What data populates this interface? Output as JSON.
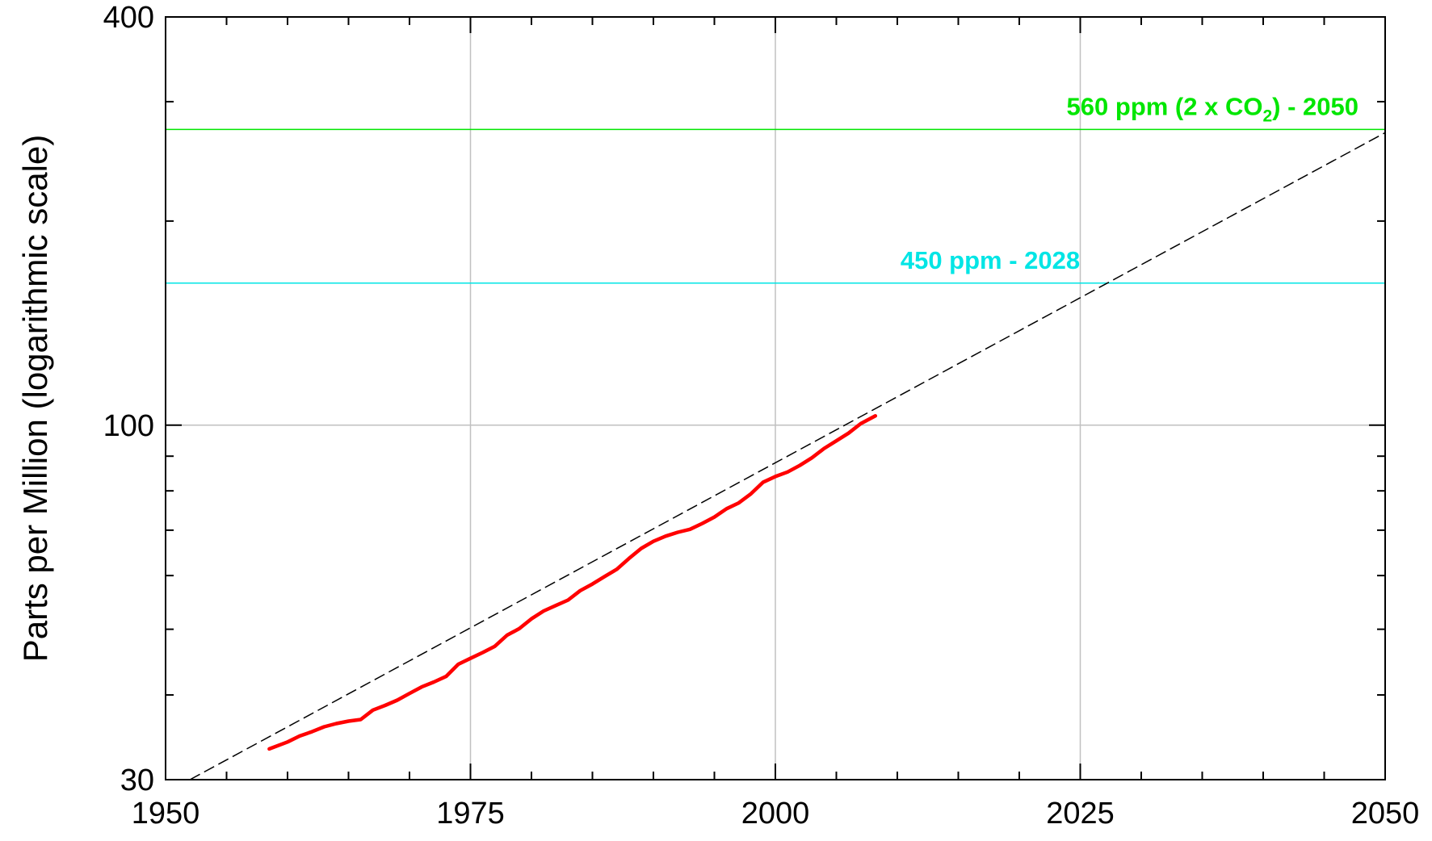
{
  "chart_data": {
    "type": "line",
    "title": "",
    "xlabel": "",
    "ylabel": "Parts per Million (logarithmic scale)",
    "y_scale": "log",
    "xlim": [
      1950,
      2050
    ],
    "ylim": [
      30,
      400
    ],
    "x_major_ticks": [
      1950,
      1975,
      2000,
      2025,
      2050
    ],
    "x_major_tick_labels": [
      "1950",
      "1975",
      "2000",
      "2025",
      "2050"
    ],
    "x_minor_ticks": [
      1955,
      1960,
      1965,
      1970,
      1980,
      1985,
      1990,
      1995,
      2005,
      2010,
      2015,
      2020,
      2030,
      2035,
      2040,
      2045
    ],
    "y_labeled_ticks": [
      30,
      100,
      400
    ],
    "y_tick_labels": [
      "30",
      "100",
      "400"
    ],
    "y_unlabeled_ticks": [
      40,
      50,
      60,
      70,
      80,
      90,
      200,
      300
    ],
    "grid": true,
    "colors": {
      "observed": "#ff0000",
      "trend": "#000000",
      "ref_560": "#00e600",
      "ref_450": "#00e5e5",
      "grid": "#c0c0c0"
    },
    "series": [
      {
        "style": "solid-red",
        "x": [
          1958.5,
          1960,
          1961,
          1962,
          1963,
          1964,
          1965,
          1966,
          1967,
          1968,
          1969,
          1970,
          1971,
          1972,
          1973,
          1974,
          1975,
          1976,
          1977,
          1978,
          1979,
          1980,
          1981,
          1982,
          1983,
          1984,
          1985,
          1986,
          1987,
          1988,
          1989,
          1990,
          1991,
          1992,
          1993,
          1994,
          1995,
          1996,
          1997,
          1998,
          1999,
          2000,
          2001,
          2002,
          2003,
          2004,
          2005,
          2006,
          2007,
          2008.2
        ],
        "y": [
          33.3,
          34.1,
          34.8,
          35.3,
          35.9,
          36.3,
          36.6,
          36.8,
          38.0,
          38.6,
          39.3,
          40.2,
          41.1,
          41.8,
          42.6,
          44.4,
          45.3,
          46.2,
          47.2,
          49.0,
          50.1,
          51.8,
          53.2,
          54.2,
          55.2,
          57.0,
          58.3,
          59.8,
          61.3,
          63.6,
          65.8,
          67.4,
          68.6,
          69.5,
          70.2,
          71.6,
          73.2,
          75.3,
          76.8,
          79.2,
          82.4,
          84.0,
          85.3,
          87.2,
          89.5,
          92.4,
          94.8,
          97.3,
          100.5,
          103.2
        ]
      },
      {
        "style": "dashed-black",
        "x": [
          1952,
          2050
        ],
        "y": [
          30,
          270
        ]
      }
    ],
    "reference_lines": [
      {
        "y": 273,
        "label_parts": [
          "560 ppm (2 x CO",
          "2",
          ") - 2050"
        ],
        "color_key": "ref_560"
      },
      {
        "y": 162,
        "label": "450 ppm - 2028",
        "color_key": "ref_450"
      }
    ]
  }
}
